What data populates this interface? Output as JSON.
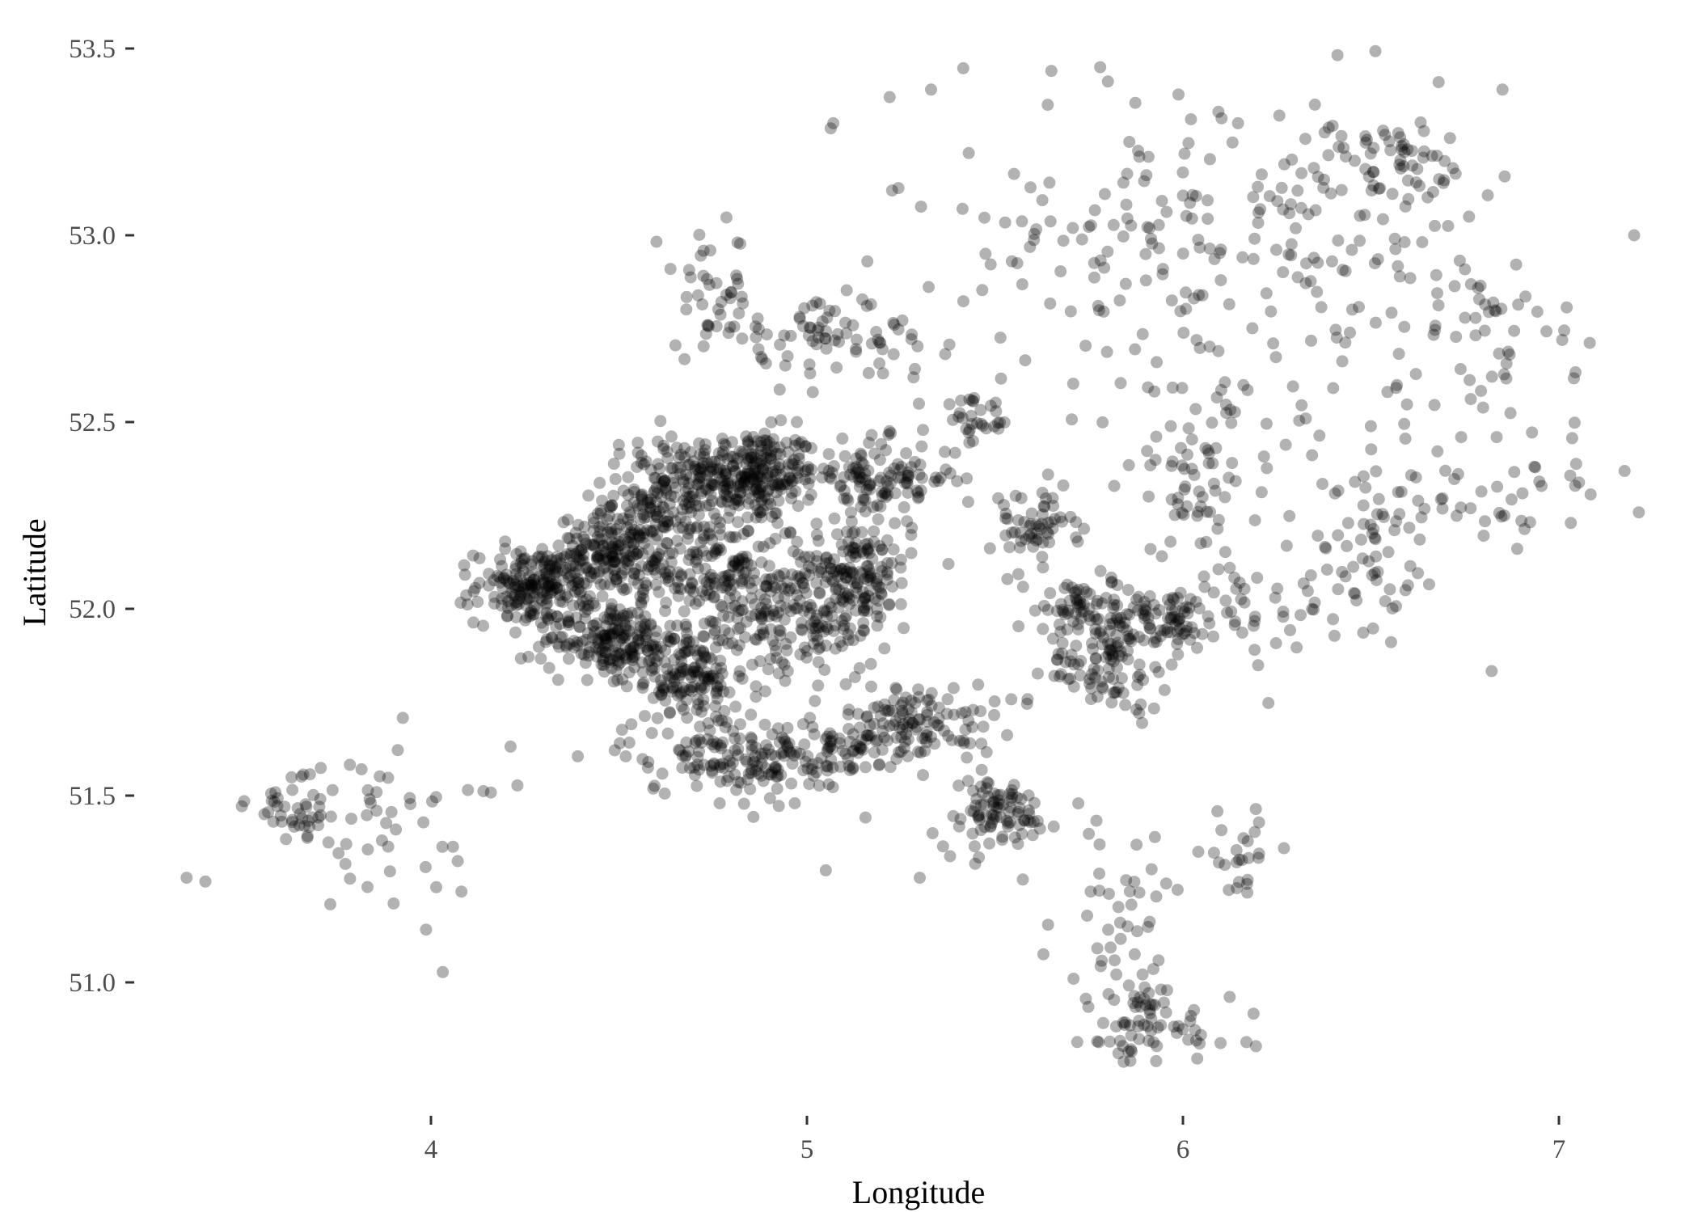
{
  "chart_data": {
    "type": "scatter",
    "title": "",
    "xlabel": "Longitude",
    "ylabel": "Latitude",
    "xlim": [
      3.3,
      7.25
    ],
    "ylim": [
      50.65,
      53.55
    ],
    "x_ticks": [
      4,
      5,
      6,
      7
    ],
    "x_tick_labels": [
      "4",
      "5",
      "6",
      "7"
    ],
    "y_ticks": [
      51.0,
      51.5,
      52.0,
      52.5,
      53.0,
      53.5
    ],
    "y_tick_labels": [
      "51.0",
      "51.5",
      "52.0",
      "52.5",
      "53.0",
      "53.5"
    ],
    "grid": false,
    "legend": "none",
    "point_color": "#000000",
    "point_alpha": 0.3,
    "clusters": [
      {
        "lon": 4.85,
        "lat": 52.36,
        "spread_lon": 0.09,
        "spread_lat": 0.06,
        "n": 260
      },
      {
        "lon": 4.62,
        "lat": 52.3,
        "spread_lon": 0.08,
        "spread_lat": 0.08,
        "n": 160
      },
      {
        "lon": 4.48,
        "lat": 52.15,
        "spread_lon": 0.07,
        "spread_lat": 0.05,
        "n": 160
      },
      {
        "lon": 4.28,
        "lat": 52.06,
        "spread_lon": 0.08,
        "spread_lat": 0.05,
        "n": 200
      },
      {
        "lon": 4.48,
        "lat": 51.92,
        "spread_lon": 0.09,
        "spread_lat": 0.05,
        "n": 190
      },
      {
        "lon": 4.68,
        "lat": 51.82,
        "spread_lon": 0.07,
        "spread_lat": 0.05,
        "n": 120
      },
      {
        "lon": 5.12,
        "lat": 52.09,
        "spread_lon": 0.08,
        "spread_lat": 0.07,
        "n": 170
      },
      {
        "lon": 5.2,
        "lat": 52.35,
        "spread_lon": 0.1,
        "spread_lat": 0.05,
        "n": 120
      },
      {
        "lon": 4.75,
        "lat": 52.1,
        "spread_lon": 0.12,
        "spread_lat": 0.08,
        "n": 180
      },
      {
        "lon": 4.95,
        "lat": 51.95,
        "spread_lon": 0.12,
        "spread_lat": 0.08,
        "n": 150
      },
      {
        "lon": 4.75,
        "lat": 51.62,
        "spread_lon": 0.12,
        "spread_lat": 0.06,
        "n": 110
      },
      {
        "lon": 5.0,
        "lat": 51.6,
        "spread_lon": 0.12,
        "spread_lat": 0.06,
        "n": 110
      },
      {
        "lon": 5.3,
        "lat": 51.7,
        "spread_lon": 0.1,
        "spread_lat": 0.05,
        "n": 120
      },
      {
        "lon": 5.5,
        "lat": 51.45,
        "spread_lon": 0.08,
        "spread_lat": 0.05,
        "n": 90
      },
      {
        "lon": 5.8,
        "lat": 51.85,
        "spread_lon": 0.08,
        "spread_lat": 0.06,
        "n": 90
      },
      {
        "lon": 5.95,
        "lat": 51.97,
        "spread_lon": 0.08,
        "spread_lat": 0.04,
        "n": 80
      },
      {
        "lon": 5.6,
        "lat": 52.22,
        "spread_lon": 0.06,
        "spread_lat": 0.05,
        "n": 60
      },
      {
        "lon": 5.75,
        "lat": 52.0,
        "spread_lon": 0.1,
        "spread_lat": 0.05,
        "n": 70
      },
      {
        "lon": 6.5,
        "lat": 52.22,
        "spread_lon": 0.1,
        "spread_lat": 0.08,
        "n": 50
      },
      {
        "lon": 6.05,
        "lat": 52.35,
        "spread_lon": 0.1,
        "spread_lat": 0.12,
        "n": 60
      },
      {
        "lon": 6.55,
        "lat": 53.2,
        "spread_lon": 0.08,
        "spread_lat": 0.05,
        "n": 45
      },
      {
        "lon": 5.85,
        "lat": 51.18,
        "spread_lon": 0.1,
        "spread_lat": 0.12,
        "n": 45
      },
      {
        "lon": 5.9,
        "lat": 50.88,
        "spread_lon": 0.12,
        "spread_lat": 0.07,
        "n": 70
      },
      {
        "lon": 3.65,
        "lat": 51.47,
        "spread_lon": 0.07,
        "spread_lat": 0.05,
        "n": 40
      },
      {
        "lon": 3.9,
        "lat": 51.4,
        "spread_lon": 0.15,
        "spread_lat": 0.12,
        "n": 50
      },
      {
        "lon": 6.15,
        "lat": 51.35,
        "spread_lon": 0.05,
        "spread_lat": 0.05,
        "n": 25
      },
      {
        "lon": 5.05,
        "lat": 52.72,
        "spread_lon": 0.15,
        "spread_lat": 0.05,
        "n": 80
      },
      {
        "lon": 4.75,
        "lat": 52.85,
        "spread_lon": 0.05,
        "spread_lat": 0.08,
        "n": 40
      },
      {
        "lon": 5.45,
        "lat": 52.5,
        "spread_lon": 0.05,
        "spread_lat": 0.03,
        "n": 30
      },
      {
        "lon": 6.4,
        "lat": 52.75,
        "spread_lon": 0.3,
        "spread_lat": 0.25,
        "n": 120
      },
      {
        "lon": 6.1,
        "lat": 53.1,
        "spread_lon": 0.35,
        "spread_lat": 0.15,
        "n": 100
      },
      {
        "lon": 6.9,
        "lat": 52.3,
        "spread_lon": 0.12,
        "spread_lat": 0.08,
        "n": 40
      },
      {
        "lon": 6.85,
        "lat": 52.75,
        "spread_lon": 0.1,
        "spread_lat": 0.1,
        "n": 35
      },
      {
        "lon": 5.7,
        "lat": 52.95,
        "spread_lon": 0.2,
        "spread_lat": 0.15,
        "n": 60
      },
      {
        "lon": 6.3,
        "lat": 52.0,
        "spread_lon": 0.2,
        "spread_lat": 0.08,
        "n": 60
      }
    ],
    "outliers": [
      [
        7.2,
        53.0
      ],
      [
        5.07,
        53.3
      ],
      [
        5.22,
        53.37
      ],
      [
        5.33,
        53.39
      ],
      [
        5.65,
        53.44
      ],
      [
        5.78,
        53.45
      ],
      [
        6.85,
        53.39
      ],
      [
        6.68,
        53.41
      ],
      [
        3.35,
        51.28
      ],
      [
        3.4,
        51.27
      ],
      [
        5.05,
        51.3
      ],
      [
        5.3,
        51.28
      ]
    ]
  }
}
